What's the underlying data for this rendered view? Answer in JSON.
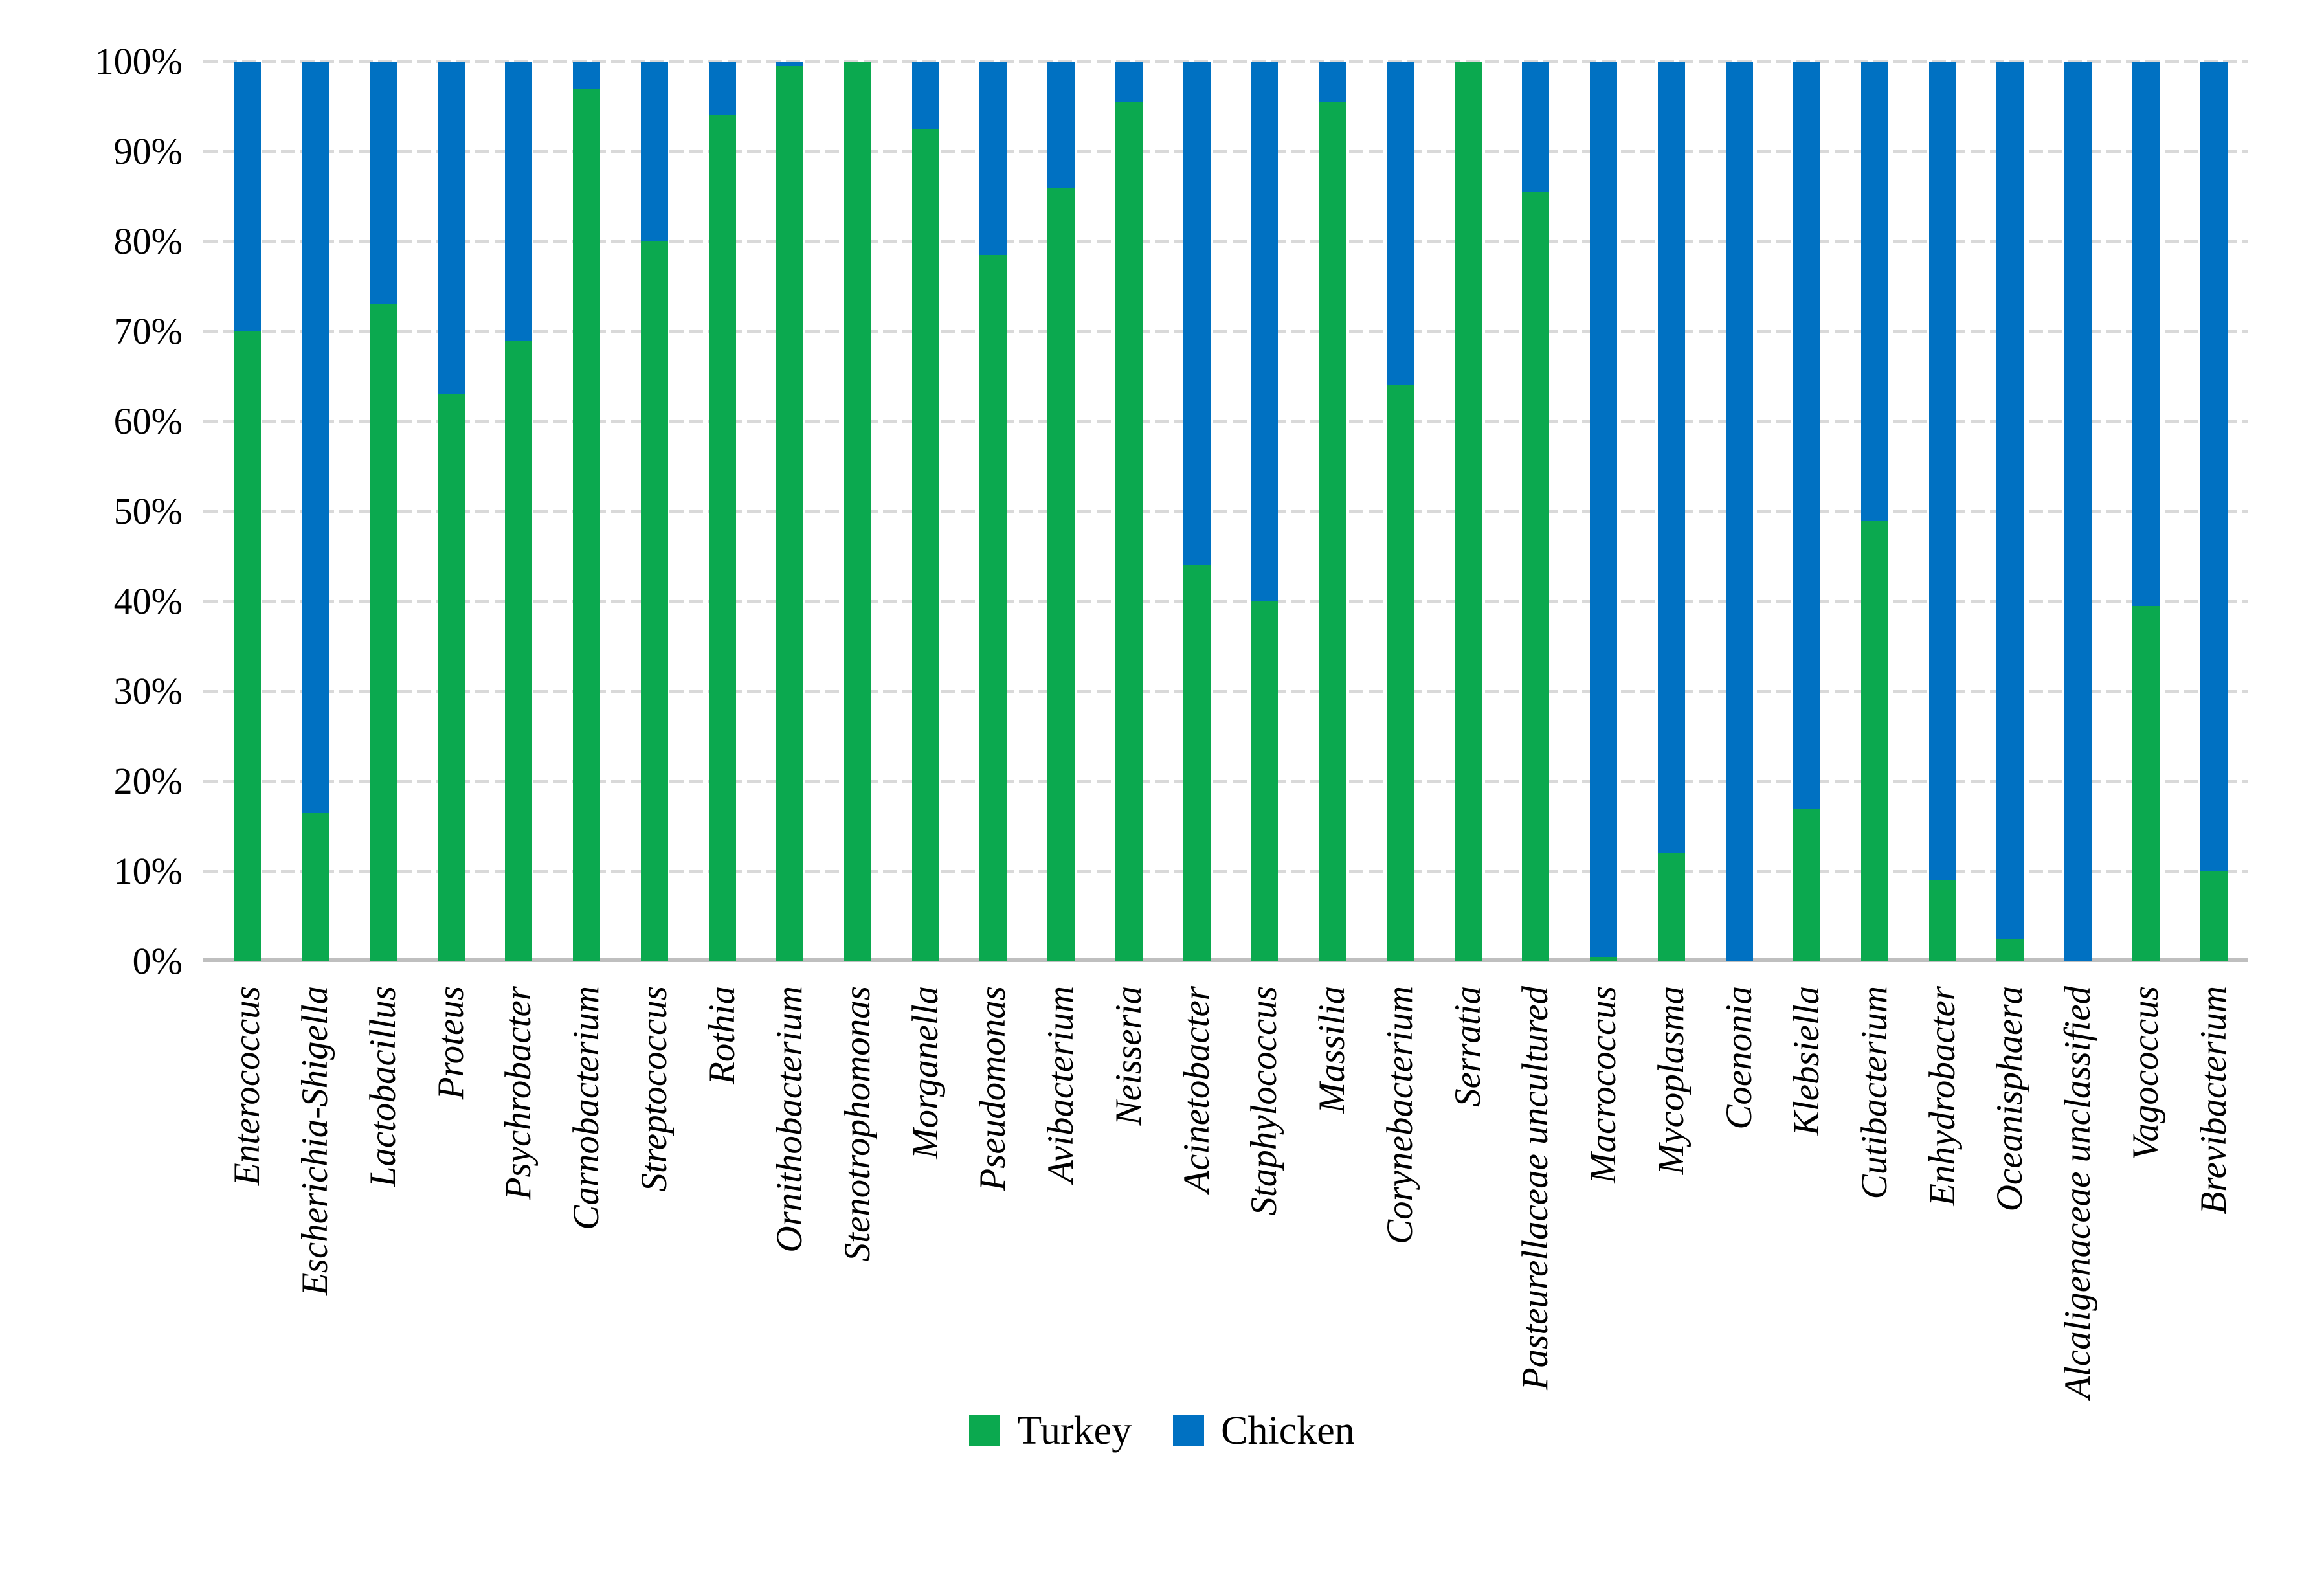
{
  "chart_data": {
    "type": "bar",
    "subtype": "stacked-100-percent-column",
    "title": "",
    "xlabel": "",
    "ylabel": "",
    "categories": [
      "Enterococcus",
      "Escherichia-Shigella",
      "Lactobacillus",
      "Proteus",
      "Psychrobacter",
      "Carnobacterium",
      "Streptococcus",
      "Rothia",
      "Ornithobacterium",
      "Stenotrophomonas",
      "Morganella",
      "Pseudomonas",
      "Avibacterium",
      "Neisseria",
      "Acinetobacter",
      "Staphylococcus",
      "Massilia",
      "Corynebacterium",
      "Serratia",
      "Pasteurellaceae uncultured",
      "Macrococcus",
      "Mycoplasma",
      "Coenonia",
      "Klebsiella",
      "Cutibacterium",
      "Enhydrobacter",
      "Oceanisphaera",
      "Alcaligenaceae unclassified",
      "Vagococcus",
      "Brevibacterium"
    ],
    "series": [
      {
        "name": "Turkey",
        "color": "#0BA94F",
        "values": [
          70,
          16.5,
          73,
          63,
          69,
          97,
          80,
          94,
          99.5,
          100,
          92.5,
          78.5,
          86,
          95.5,
          44,
          40,
          95.5,
          64,
          100,
          85.5,
          0.5,
          12,
          0,
          17,
          49,
          9,
          2.5,
          0,
          39.5,
          10
        ]
      },
      {
        "name": "Chicken",
        "color": "#0071C2",
        "values": [
          30,
          83.5,
          27,
          37,
          31,
          3,
          20,
          6,
          0.5,
          0,
          7.5,
          21.5,
          14,
          4.5,
          56,
          60,
          4.5,
          36,
          0,
          14.5,
          99.5,
          88,
          100,
          83,
          51,
          91,
          97.5,
          100,
          60.5,
          90
        ]
      }
    ],
    "y_ticks": [
      "0%",
      "10%",
      "20%",
      "30%",
      "40%",
      "50%",
      "60%",
      "70%",
      "80%",
      "90%",
      "100%"
    ],
    "ylim": [
      0,
      100
    ],
    "grid": "horizontal dashed light-gray, solid gray baseline at 0%",
    "legend_position": "bottom-center"
  },
  "colors": {
    "gridline": "#D9D9D9",
    "axis_line": "#BFBFBF",
    "background": "#FFFFFF"
  }
}
